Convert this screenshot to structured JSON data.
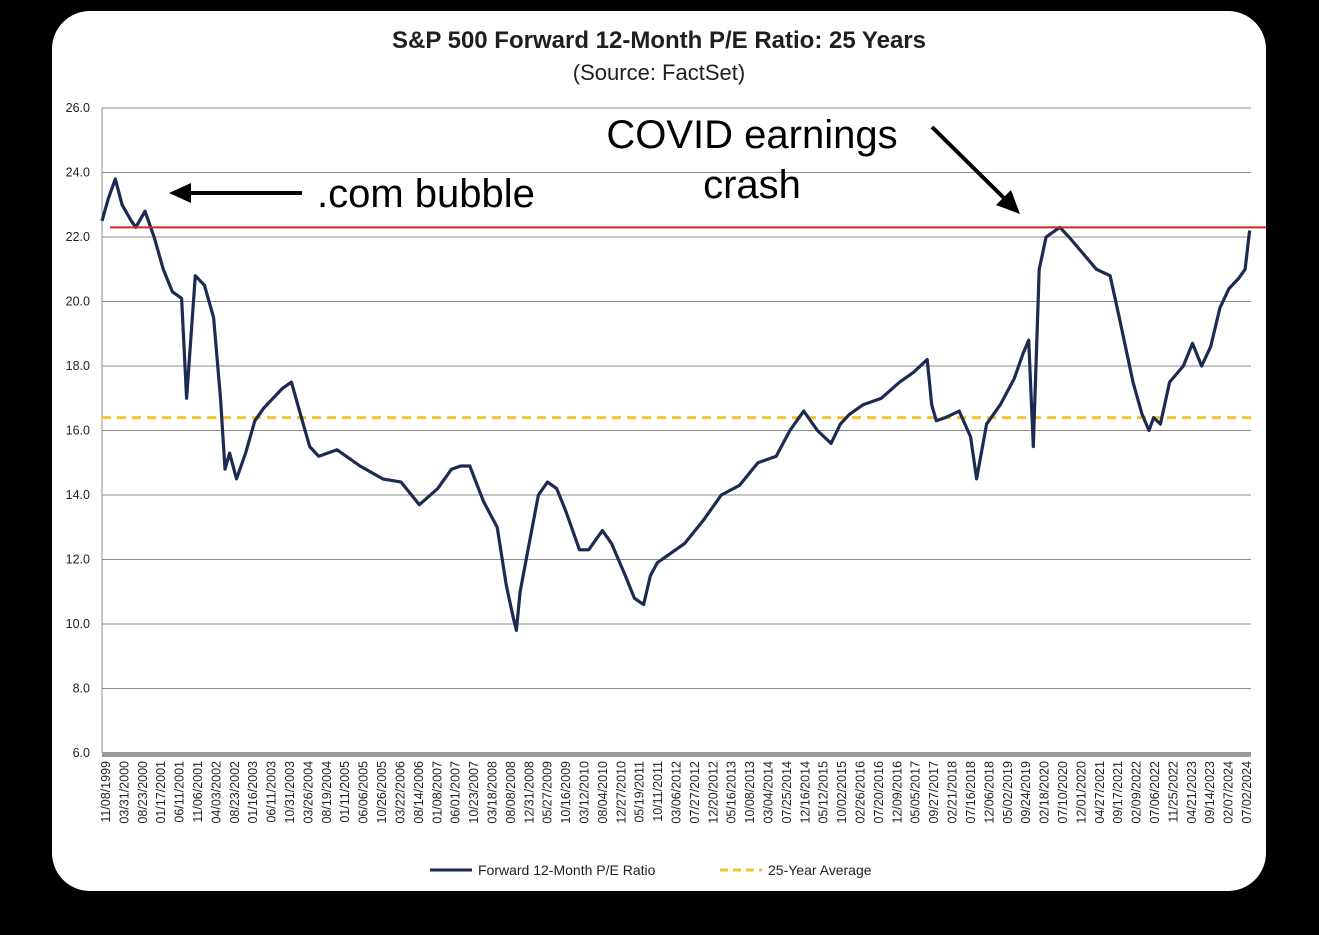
{
  "chart_data": {
    "type": "line",
    "title": "S&P 500 Forward 12-Month P/E Ratio: 25 Years",
    "subtitle": "(Source: FactSet)",
    "ylim": [
      6.0,
      26.0
    ],
    "yticks": [
      "6.0",
      "8.0",
      "10.0",
      "12.0",
      "14.0",
      "16.0",
      "18.0",
      "20.0",
      "22.0",
      "24.0",
      "26.0"
    ],
    "xticks": [
      "11/08/1999",
      "03/31/2000",
      "08/23/2000",
      "01/17/2001",
      "06/11/2001",
      "11/06/2001",
      "04/03/2002",
      "08/23/2002",
      "01/16/2003",
      "06/11/2003",
      "10/31/2003",
      "03/26/2004",
      "08/19/2004",
      "01/11/2005",
      "06/06/2005",
      "10/26/2005",
      "03/22/2006",
      "08/14/2006",
      "01/08/2007",
      "06/01/2007",
      "10/23/2007",
      "03/18/2008",
      "08/08/2008",
      "12/31/2008",
      "05/27/2009",
      "10/16/2009",
      "03/12/2010",
      "08/04/2010",
      "12/27/2010",
      "05/19/2011",
      "10/11/2011",
      "03/06/2012",
      "07/27/2012",
      "12/20/2012",
      "05/16/2013",
      "10/08/2013",
      "03/04/2014",
      "07/25/2014",
      "12/16/2014",
      "05/12/2015",
      "10/02/2015",
      "02/26/2016",
      "07/20/2016",
      "12/09/2016",
      "05/05/2017",
      "09/27/2017",
      "02/21/2018",
      "07/16/2018",
      "12/06/2018",
      "05/02/2019",
      "09/24/2019",
      "02/18/2020",
      "07/10/2020",
      "12/01/2020",
      "04/27/2021",
      "09/17/2021",
      "02/09/2022",
      "07/06/2022",
      "11/25/2022",
      "04/21/2023",
      "09/14/2023",
      "02/07/2024",
      "07/02/2024"
    ],
    "grid": true,
    "legend_position": "bottom",
    "series": [
      {
        "name": "Forward 12-Month P/E Ratio",
        "color": "#1c2b52",
        "style": "solid",
        "x": [
          1999.86,
          2000.0,
          2000.15,
          2000.3,
          2000.5,
          2000.6,
          2000.8,
          2001.0,
          2001.2,
          2001.4,
          2001.6,
          2001.71,
          2001.9,
          2002.1,
          2002.3,
          2002.45,
          2002.55,
          2002.65,
          2002.8,
          2003.0,
          2003.2,
          2003.4,
          2003.6,
          2003.8,
          2004.0,
          2004.2,
          2004.4,
          2004.6,
          2005.0,
          2005.5,
          2006.0,
          2006.4,
          2006.8,
          2007.2,
          2007.5,
          2007.7,
          2007.9,
          2008.2,
          2008.5,
          2008.7,
          2008.85,
          2008.92,
          2009.0,
          2009.2,
          2009.4,
          2009.6,
          2009.8,
          2010.0,
          2010.3,
          2010.5,
          2010.8,
          2011.0,
          2011.3,
          2011.5,
          2011.7,
          2011.85,
          2012.0,
          2012.3,
          2012.6,
          2013.0,
          2013.4,
          2013.8,
          2014.2,
          2014.6,
          2014.9,
          2015.2,
          2015.5,
          2015.8,
          2016.0,
          2016.2,
          2016.5,
          2016.9,
          2017.3,
          2017.6,
          2017.9,
          2018.0,
          2018.1,
          2018.3,
          2018.6,
          2018.85,
          2018.98,
          2019.2,
          2019.5,
          2019.8,
          2020.0,
          2020.12,
          2020.22,
          2020.35,
          2020.5,
          2020.8,
          2021.0,
          2021.3,
          2021.6,
          2021.9,
          2022.1,
          2022.4,
          2022.6,
          2022.75,
          2022.85,
          2023.0,
          2023.2,
          2023.5,
          2023.7,
          2023.9,
          2024.1,
          2024.3,
          2024.5,
          2024.7,
          2024.85,
          2024.95
        ],
        "y": [
          22.5,
          23.2,
          23.8,
          23.0,
          22.5,
          22.3,
          22.8,
          22.0,
          21.0,
          20.3,
          20.1,
          17.0,
          20.8,
          20.5,
          19.5,
          17.0,
          14.8,
          15.3,
          14.5,
          15.3,
          16.3,
          16.7,
          17.0,
          17.3,
          17.5,
          16.5,
          15.5,
          15.2,
          15.4,
          14.9,
          14.5,
          14.4,
          13.7,
          14.2,
          14.8,
          14.9,
          14.9,
          13.8,
          13.0,
          11.2,
          10.2,
          9.8,
          11.0,
          12.5,
          14.0,
          14.4,
          14.2,
          13.5,
          12.3,
          12.3,
          12.9,
          12.5,
          11.5,
          10.8,
          10.6,
          11.5,
          11.9,
          12.2,
          12.5,
          13.2,
          14.0,
          14.3,
          15.0,
          15.2,
          16.0,
          16.6,
          16.0,
          15.6,
          16.2,
          16.5,
          16.8,
          17.0,
          17.5,
          17.8,
          18.2,
          16.8,
          16.3,
          16.4,
          16.6,
          15.8,
          14.5,
          16.2,
          16.8,
          17.6,
          18.4,
          18.8,
          15.5,
          21.0,
          22.0,
          22.3,
          22.0,
          21.5,
          21.0,
          20.8,
          19.5,
          17.5,
          16.5,
          16.0,
          16.4,
          16.2,
          17.5,
          18.0,
          18.7,
          18.0,
          18.6,
          19.8,
          20.4,
          20.7,
          21.0,
          22.2
        ]
      },
      {
        "name": "25-Year Average",
        "color": "#f5c230",
        "style": "dashed",
        "y_const": 16.4
      }
    ],
    "reference_line": {
      "y": 22.3,
      "color": "#cc2a1f"
    }
  },
  "annotations": {
    "bubble": ".com bubble",
    "covid_line1": "COVID earnings",
    "covid_line2": "crash"
  }
}
